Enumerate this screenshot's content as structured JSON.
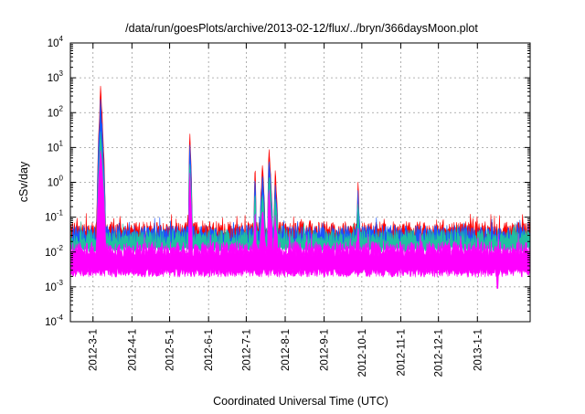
{
  "chart_data": {
    "type": "area",
    "title": "/data/run/goesPlots/archive/2013-02-12/flux/../bryn/366daysMoon.plot",
    "xlabel": "Coordinated Universal Time (UTC)",
    "ylabel": "cSv/day",
    "yscale": "log",
    "ylim": [
      0.0001,
      10000
    ],
    "yticks": [
      {
        "base": "10",
        "exp": "-4"
      },
      {
        "base": "10",
        "exp": "-3"
      },
      {
        "base": "10",
        "exp": "-2"
      },
      {
        "base": "10",
        "exp": "-1"
      },
      {
        "base": "10",
        "exp": "0"
      },
      {
        "base": "10",
        "exp": "1"
      },
      {
        "base": "10",
        "exp": "2"
      },
      {
        "base": "10",
        "exp": "3"
      },
      {
        "base": "10",
        "exp": "4"
      }
    ],
    "xlim": [
      "2012-02-12",
      "2013-02-12"
    ],
    "xticks": [
      "2012-3-1",
      "2012-4-1",
      "2012-5-1",
      "2012-6-1",
      "2012-7-1",
      "2012-8-1",
      "2012-9-1",
      "2012-10-1",
      "2012-11-1",
      "2012-12-1",
      "2013-1-1"
    ],
    "grid": true,
    "series": [
      {
        "color": "#ff0000",
        "baseline": 0.045,
        "events": [
          {
            "start": "2012-03-04",
            "peak": "2012-03-07",
            "end": "2012-03-11",
            "value": 500
          },
          {
            "start": "2012-05-16",
            "peak": "2012-05-17",
            "end": "2012-05-19",
            "value": 28
          },
          {
            "start": "2012-07-07",
            "peak": "2012-07-08",
            "end": "2012-07-09",
            "value": 3
          },
          {
            "start": "2012-07-12",
            "peak": "2012-07-14",
            "end": "2012-07-16",
            "value": 3
          },
          {
            "start": "2012-07-18",
            "peak": "2012-07-19",
            "end": "2012-07-22",
            "value": 9
          },
          {
            "start": "2012-07-23",
            "peak": "2012-07-24",
            "end": "2012-07-26",
            "value": 2
          },
          {
            "start": "2012-09-27",
            "peak": "2012-09-28",
            "end": "2012-09-29",
            "value": 0.9
          }
        ]
      },
      {
        "color": "#1a55ff",
        "baseline": 0.035,
        "events": [
          {
            "start": "2012-03-04",
            "peak": "2012-03-07",
            "end": "2012-03-11",
            "value": 200
          },
          {
            "start": "2012-05-16",
            "peak": "2012-05-17",
            "end": "2012-05-19",
            "value": 18
          },
          {
            "start": "2012-07-07",
            "peak": "2012-07-08",
            "end": "2012-07-09",
            "value": 1.5
          },
          {
            "start": "2012-07-12",
            "peak": "2012-07-14",
            "end": "2012-07-16",
            "value": 1.5
          },
          {
            "start": "2012-07-18",
            "peak": "2012-07-19",
            "end": "2012-07-22",
            "value": 5
          },
          {
            "start": "2012-07-23",
            "peak": "2012-07-24",
            "end": "2012-07-26",
            "value": 1
          },
          {
            "start": "2012-09-27",
            "peak": "2012-09-28",
            "end": "2012-09-29",
            "value": 0.5
          }
        ]
      },
      {
        "color": "#20c0a0",
        "baseline": 0.026,
        "events": [
          {
            "start": "2012-03-04",
            "peak": "2012-03-07",
            "end": "2012-03-11",
            "value": 30
          },
          {
            "start": "2012-05-16",
            "peak": "2012-05-17",
            "end": "2012-05-19",
            "value": 5
          },
          {
            "start": "2012-07-07",
            "peak": "2012-07-08",
            "end": "2012-07-09",
            "value": 0.5
          },
          {
            "start": "2012-07-12",
            "peak": "2012-07-14",
            "end": "2012-07-16",
            "value": 0.5
          },
          {
            "start": "2012-07-18",
            "peak": "2012-07-19",
            "end": "2012-07-22",
            "value": 2
          },
          {
            "start": "2012-07-23",
            "peak": "2012-07-24",
            "end": "2012-07-26",
            "value": 0.4
          },
          {
            "start": "2012-09-27",
            "peak": "2012-09-28",
            "end": "2012-09-29",
            "value": 0.2
          }
        ]
      },
      {
        "color": "#ff00ff",
        "baseline": 0.012,
        "events": [
          {
            "start": "2012-03-04",
            "peak": "2012-03-07",
            "end": "2012-03-11",
            "value": 10
          },
          {
            "start": "2012-05-16",
            "peak": "2012-05-17",
            "end": "2012-05-19",
            "value": 2
          },
          {
            "start": "2012-07-07",
            "peak": "2012-07-08",
            "end": "2012-07-09",
            "value": 0.15
          },
          {
            "start": "2012-07-12",
            "peak": "2012-07-14",
            "end": "2012-07-16",
            "value": 0.15
          },
          {
            "start": "2012-07-18",
            "peak": "2012-07-19",
            "end": "2012-07-22",
            "value": 0.6
          },
          {
            "start": "2012-07-23",
            "peak": "2012-07-24",
            "end": "2012-07-26",
            "value": 0.1
          },
          {
            "start": "2012-09-27",
            "peak": "2012-09-28",
            "end": "2012-09-29",
            "value": 0.05
          }
        ],
        "minimum_dips": [
          {
            "date": "2012-03-11",
            "value": 0.003
          },
          {
            "date": "2012-08-22",
            "value": 0.0022
          },
          {
            "date": "2013-01-17",
            "value": 0.0009
          }
        ]
      }
    ]
  }
}
